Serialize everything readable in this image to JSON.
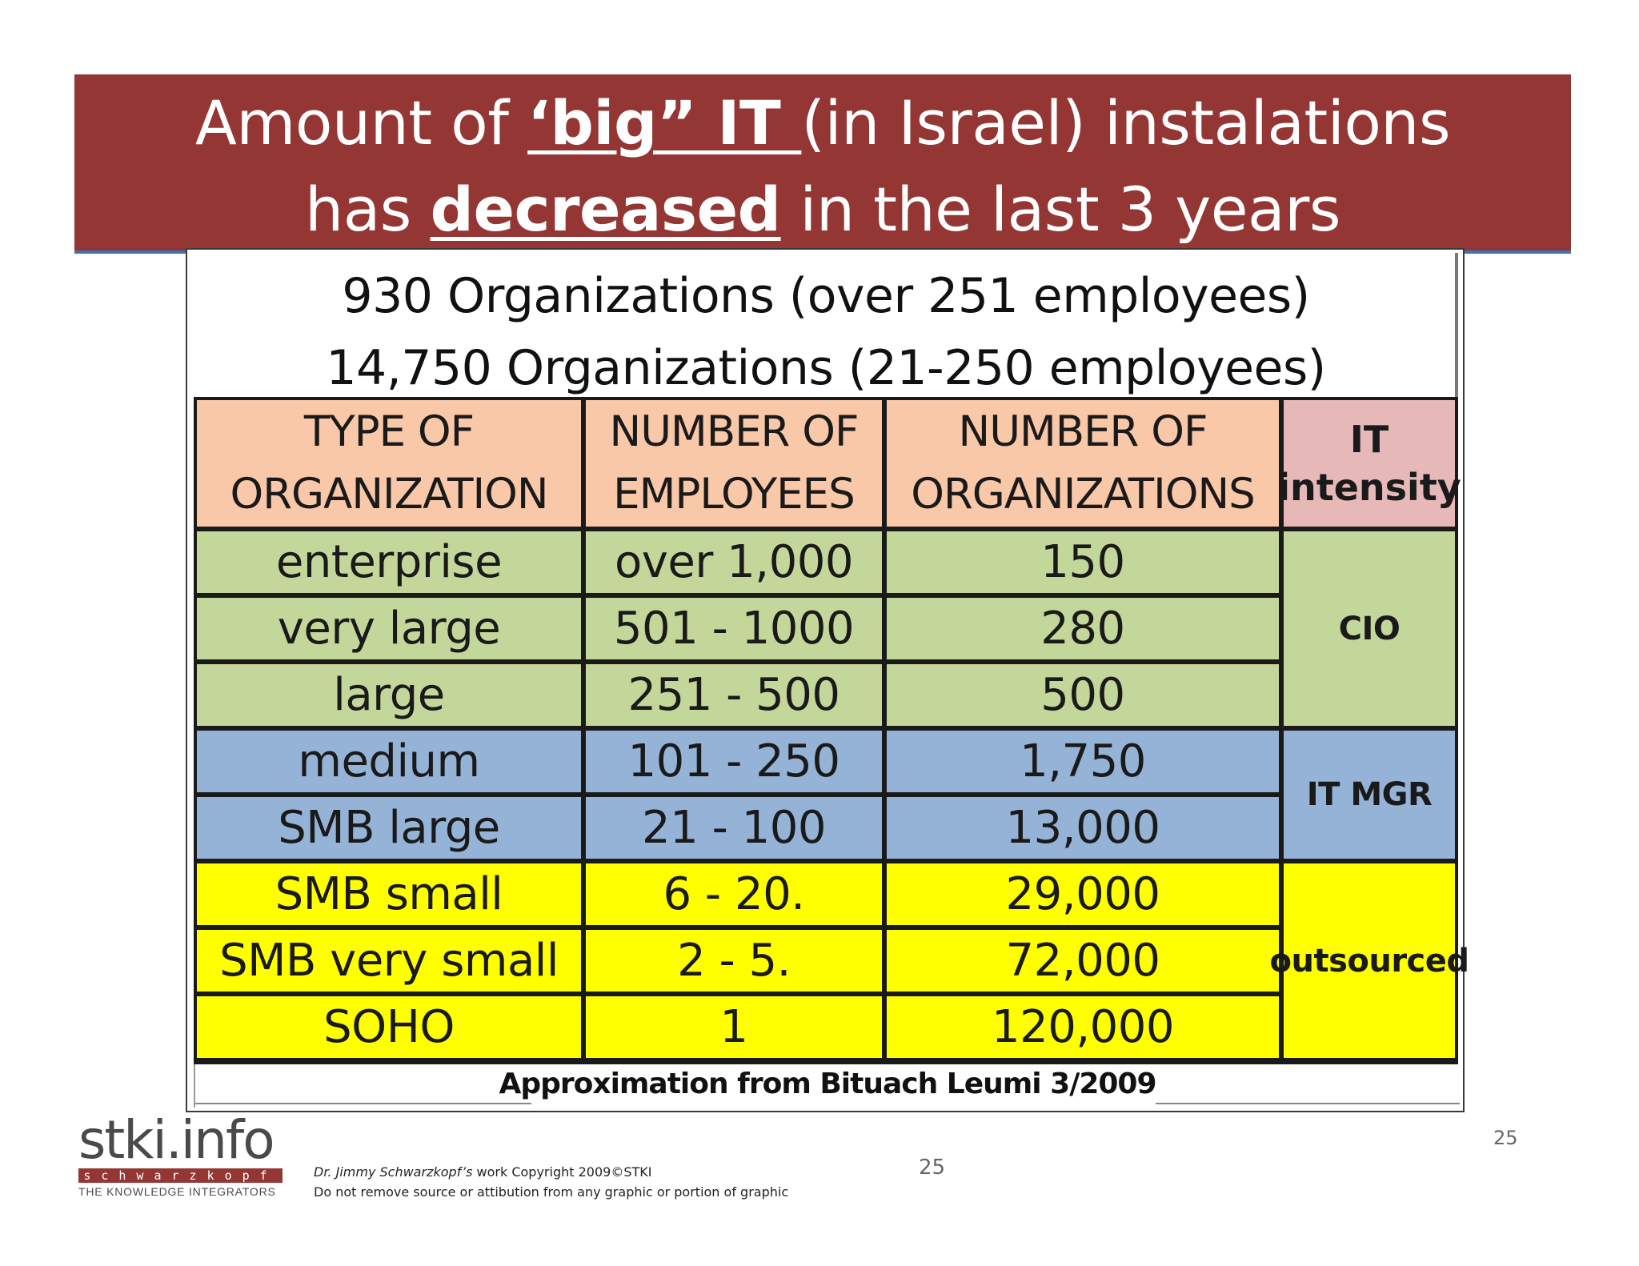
{
  "title": {
    "line1_pre": "Amount of ",
    "line1_bold": "‘big” IT ",
    "line1_post": "(in Israel) instalations",
    "line2_pre": "has ",
    "line2_bold": "decreased",
    "line2_post": " in the last 3 years"
  },
  "headline": {
    "line1": "930 Organizations (over 251 employees)",
    "line2": "14,750 Organizations (21-250 employees)"
  },
  "table": {
    "headers": {
      "type_line1": "TYPE OF",
      "type_line2": "ORGANIZATION",
      "employees_line1": "NUMBER OF",
      "employees_line2": "EMPLOYEES",
      "orgs_line1": "NUMBER OF",
      "orgs_line2": "ORGANIZATIONS",
      "it_line1": "IT",
      "it_line2": "intensity"
    },
    "rows": [
      {
        "type": "enterprise",
        "employees": "over 1,000",
        "organizations": "150"
      },
      {
        "type": "very large",
        "employees": "501 - 1000",
        "organizations": "280"
      },
      {
        "type": "large",
        "employees": "251 - 500",
        "organizations": "500"
      },
      {
        "type": "medium",
        "employees": "101 - 250",
        "organizations": "1,750"
      },
      {
        "type": "SMB large",
        "employees": "21 - 100",
        "organizations": "13,000"
      },
      {
        "type": "SMB small",
        "employees": "6 - 20.",
        "organizations": "29,000"
      },
      {
        "type": "SMB very small",
        "employees": "2 - 5.",
        "organizations": "72,000"
      },
      {
        "type": "SOHO",
        "employees": "1",
        "organizations": "120,000"
      }
    ],
    "bands": {
      "cio": "CIO",
      "it_mgr": "IT MGR",
      "outsourced": "outsourced"
    },
    "colors": {
      "header": "#f9c8a9",
      "header_it": "#e6b8b7",
      "green": "#c4d79b",
      "blue": "#95b3d7",
      "yellow": "#ffff00"
    }
  },
  "caption": "Approximation from Bituach Leumi 3/2009",
  "footer": {
    "logo_main": "stki.info",
    "logo_strip": "schwarzkopf",
    "logo_sub": "THE KNOWLEDGE INTEGRATORS",
    "copyright_author": "Dr. Jimmy Schwarzkopf’s",
    "copyright_rest": " work Copyright 2009©STKI",
    "copyright_line2": "Do not remove source or attibution from any graphic or portion of graphic",
    "page_number_center": "25",
    "page_number_right": "25"
  },
  "banner_color": "#943634"
}
